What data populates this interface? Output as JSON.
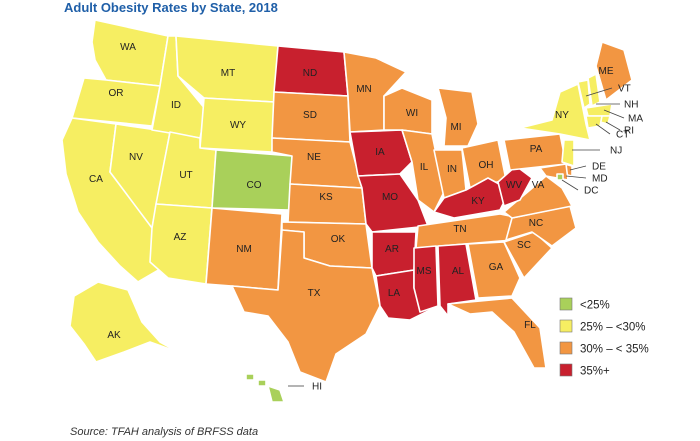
{
  "title": "Adult Obesity Rates by State, 2018",
  "source": "Source: TFAH analysis of BRFSS data",
  "colors": {
    "lt25": "#a9d05a",
    "25to30": "#f6ee62",
    "30to35": "#f29642",
    "35plus": "#c8202e"
  },
  "legend": [
    {
      "key": "lt25",
      "label": "<25%"
    },
    {
      "key": "25to30",
      "label": "25% – <30%"
    },
    {
      "key": "30to35",
      "label": "30% – < 35%"
    },
    {
      "key": "35plus",
      "label": "35%+"
    }
  ],
  "states": [
    {
      "abbr": "WA",
      "category": "25to30"
    },
    {
      "abbr": "OR",
      "category": "25to30"
    },
    {
      "abbr": "CA",
      "category": "25to30"
    },
    {
      "abbr": "NV",
      "category": "25to30"
    },
    {
      "abbr": "ID",
      "category": "25to30"
    },
    {
      "abbr": "MT",
      "category": "25to30"
    },
    {
      "abbr": "WY",
      "category": "25to30"
    },
    {
      "abbr": "UT",
      "category": "25to30"
    },
    {
      "abbr": "AZ",
      "category": "25to30"
    },
    {
      "abbr": "CO",
      "category": "lt25"
    },
    {
      "abbr": "NM",
      "category": "30to35"
    },
    {
      "abbr": "ND",
      "category": "35plus"
    },
    {
      "abbr": "SD",
      "category": "30to35"
    },
    {
      "abbr": "NE",
      "category": "30to35"
    },
    {
      "abbr": "KS",
      "category": "30to35"
    },
    {
      "abbr": "OK",
      "category": "30to35"
    },
    {
      "abbr": "TX",
      "category": "30to35"
    },
    {
      "abbr": "MN",
      "category": "30to35"
    },
    {
      "abbr": "IA",
      "category": "35plus"
    },
    {
      "abbr": "MO",
      "category": "35plus"
    },
    {
      "abbr": "AR",
      "category": "35plus"
    },
    {
      "abbr": "LA",
      "category": "35plus"
    },
    {
      "abbr": "WI",
      "category": "30to35"
    },
    {
      "abbr": "IL",
      "category": "30to35"
    },
    {
      "abbr": "MI",
      "category": "30to35"
    },
    {
      "abbr": "IN",
      "category": "30to35"
    },
    {
      "abbr": "OH",
      "category": "30to35"
    },
    {
      "abbr": "KY",
      "category": "35plus"
    },
    {
      "abbr": "TN",
      "category": "30to35"
    },
    {
      "abbr": "MS",
      "category": "35plus"
    },
    {
      "abbr": "AL",
      "category": "35plus"
    },
    {
      "abbr": "GA",
      "category": "30to35"
    },
    {
      "abbr": "FL",
      "category": "30to35"
    },
    {
      "abbr": "SC",
      "category": "30to35"
    },
    {
      "abbr": "NC",
      "category": "30to35"
    },
    {
      "abbr": "VA",
      "category": "30to35"
    },
    {
      "abbr": "WV",
      "category": "35plus"
    },
    {
      "abbr": "PA",
      "category": "30to35"
    },
    {
      "abbr": "NY",
      "category": "25to30"
    },
    {
      "abbr": "VT",
      "category": "25to30"
    },
    {
      "abbr": "NH",
      "category": "25to30"
    },
    {
      "abbr": "ME",
      "category": "30to35"
    },
    {
      "abbr": "MA",
      "category": "25to30"
    },
    {
      "abbr": "RI",
      "category": "25to30"
    },
    {
      "abbr": "CT",
      "category": "25to30"
    },
    {
      "abbr": "NJ",
      "category": "25to30"
    },
    {
      "abbr": "DE",
      "category": "30to35"
    },
    {
      "abbr": "MD",
      "category": "30to35"
    },
    {
      "abbr": "DC",
      "category": "lt25"
    },
    {
      "abbr": "AK",
      "category": "25to30"
    },
    {
      "abbr": "HI",
      "category": "lt25"
    }
  ]
}
